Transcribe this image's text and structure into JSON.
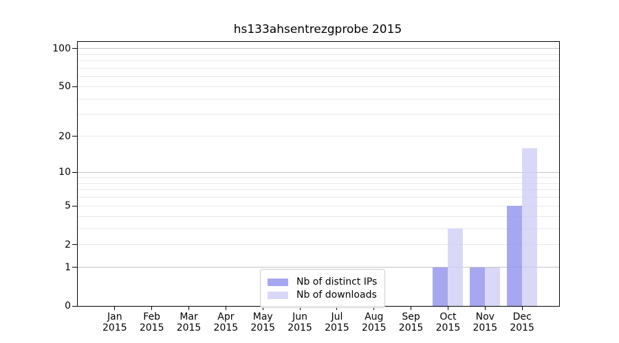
{
  "chart_data": {
    "type": "bar",
    "title": "hs133ahsentrezgprobe 2015",
    "x_year": "2015",
    "x_months": [
      "Jan",
      "Feb",
      "Mar",
      "Apr",
      "May",
      "Jun",
      "Jul",
      "Aug",
      "Sep",
      "Oct",
      "Nov",
      "Dec"
    ],
    "series": [
      {
        "name": "Nb of distinct IPs",
        "color": "#9090ee",
        "values": [
          0,
          0,
          0,
          0,
          0,
          0,
          0,
          0,
          0,
          1,
          1,
          5
        ]
      },
      {
        "name": "Nb of downloads",
        "color": "#ccccf4",
        "values": [
          0,
          0,
          0,
          0,
          0,
          0,
          0,
          0,
          0,
          3,
          1,
          16
        ]
      }
    ],
    "y_ticks": [
      0,
      1,
      2,
      5,
      10,
      20,
      50,
      100
    ],
    "y_minor_gridlines": [
      3,
      4,
      6,
      7,
      8,
      9,
      30,
      40,
      60,
      70,
      80,
      90
    ],
    "y_decade_gridlines": [
      1,
      10,
      100
    ],
    "scale": "log1p",
    "ylim": [
      0,
      113
    ],
    "grid": "on",
    "xlabel": "",
    "ylabel": "",
    "legend_position": "bottom-center",
    "background_color": "#ffffff",
    "axis_color": "#000000",
    "grid_major_color": "#c2c2c2",
    "grid_minor_color": "#e8e8e8"
  }
}
